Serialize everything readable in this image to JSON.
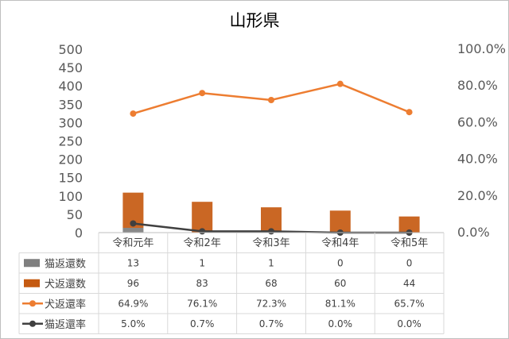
{
  "chart_data": {
    "type": "bar",
    "title": "山形県",
    "categories": [
      "令和元年",
      "令和2年",
      "令和3年",
      "令和4年",
      "令和5年"
    ],
    "series": [
      {
        "name": "猫返還数",
        "kind": "bar",
        "axis": "left",
        "color": "#7f7f7f",
        "values": [
          13,
          1,
          1,
          0,
          0
        ],
        "labels": [
          "13",
          "1",
          "1",
          "0",
          "0"
        ]
      },
      {
        "name": "犬返還数",
        "kind": "bar",
        "axis": "left",
        "color": "#c55a11",
        "values": [
          96,
          83,
          68,
          60,
          44
        ],
        "labels": [
          "96",
          "83",
          "68",
          "60",
          "44"
        ]
      },
      {
        "name": "犬返還率",
        "kind": "line",
        "axis": "right",
        "color": "#ed7d31",
        "values": [
          64.9,
          76.1,
          72.3,
          81.1,
          65.7
        ],
        "labels": [
          "64.9%",
          "76.1%",
          "72.3%",
          "81.1%",
          "65.7%"
        ]
      },
      {
        "name": "猫返還率",
        "kind": "line",
        "axis": "right",
        "color": "#404040",
        "values": [
          5.0,
          0.7,
          0.7,
          0.0,
          0.0
        ],
        "labels": [
          "5.0%",
          "0.7%",
          "0.7%",
          "0.0%",
          "0.0%"
        ]
      }
    ],
    "ylim_left": [
      0,
      500
    ],
    "ylim_right": [
      0,
      100
    ],
    "yticks_left": [
      "0",
      "50",
      "100",
      "150",
      "200",
      "250",
      "300",
      "350",
      "400",
      "450",
      "500"
    ],
    "yticks_right": [
      "0.0%",
      "20.0%",
      "40.0%",
      "60.0%",
      "80.0%",
      "100.0%"
    ],
    "grid": false,
    "data_table": true
  }
}
